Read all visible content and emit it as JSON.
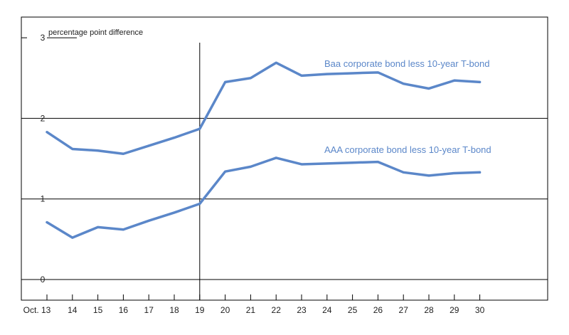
{
  "chart_data": {
    "type": "line",
    "title": "",
    "ylabel": "percentage point difference",
    "xlabel": "",
    "x": [
      "Oct. 13",
      "14",
      "15",
      "16",
      "17",
      "18",
      "19",
      "20",
      "21",
      "22",
      "23",
      "24",
      "25",
      "26",
      "27",
      "28",
      "29",
      "30"
    ],
    "ylim": [
      0,
      3
    ],
    "yticks": [
      "0",
      "1",
      "2",
      "3"
    ],
    "grid": "horizontal",
    "series": [
      {
        "name": "Baa corporate bond less 10-year T-bond",
        "color": "#5b87c9",
        "values": [
          1.83,
          1.62,
          1.6,
          1.56,
          1.66,
          1.76,
          1.87,
          2.45,
          2.5,
          2.69,
          2.53,
          2.55,
          2.56,
          2.57,
          2.43,
          2.37,
          2.47,
          2.45
        ]
      },
      {
        "name": "AAA corporate bond less 10-year T-bond",
        "color": "#5b87c9",
        "values": [
          0.71,
          0.52,
          0.65,
          0.62,
          0.73,
          0.83,
          0.94,
          1.34,
          1.4,
          1.51,
          1.43,
          1.44,
          1.45,
          1.46,
          1.33,
          1.29,
          1.32,
          1.33
        ]
      }
    ],
    "annotations": {
      "vertical_marker_at": "19"
    }
  }
}
